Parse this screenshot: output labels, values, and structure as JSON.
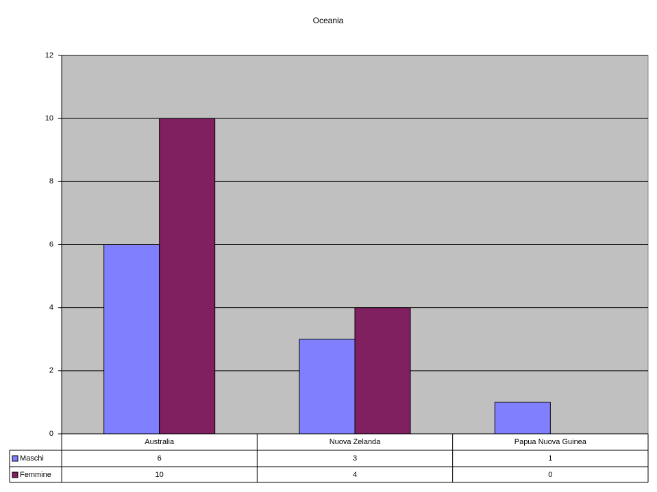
{
  "chart_data": {
    "type": "bar",
    "title": "Oceania",
    "categories": [
      "Australia",
      "Nuova Zelanda",
      "Papua Nuova Guinea"
    ],
    "series": [
      {
        "name": "Maschi",
        "color": "#8080ff",
        "values": [
          6,
          3,
          1
        ]
      },
      {
        "name": "Femmine",
        "color": "#802060",
        "values": [
          10,
          4,
          0
        ]
      }
    ],
    "ylim": [
      0,
      12
    ],
    "yticks": [
      0,
      2,
      4,
      6,
      8,
      10,
      12
    ],
    "grid": true,
    "data_table": true
  }
}
